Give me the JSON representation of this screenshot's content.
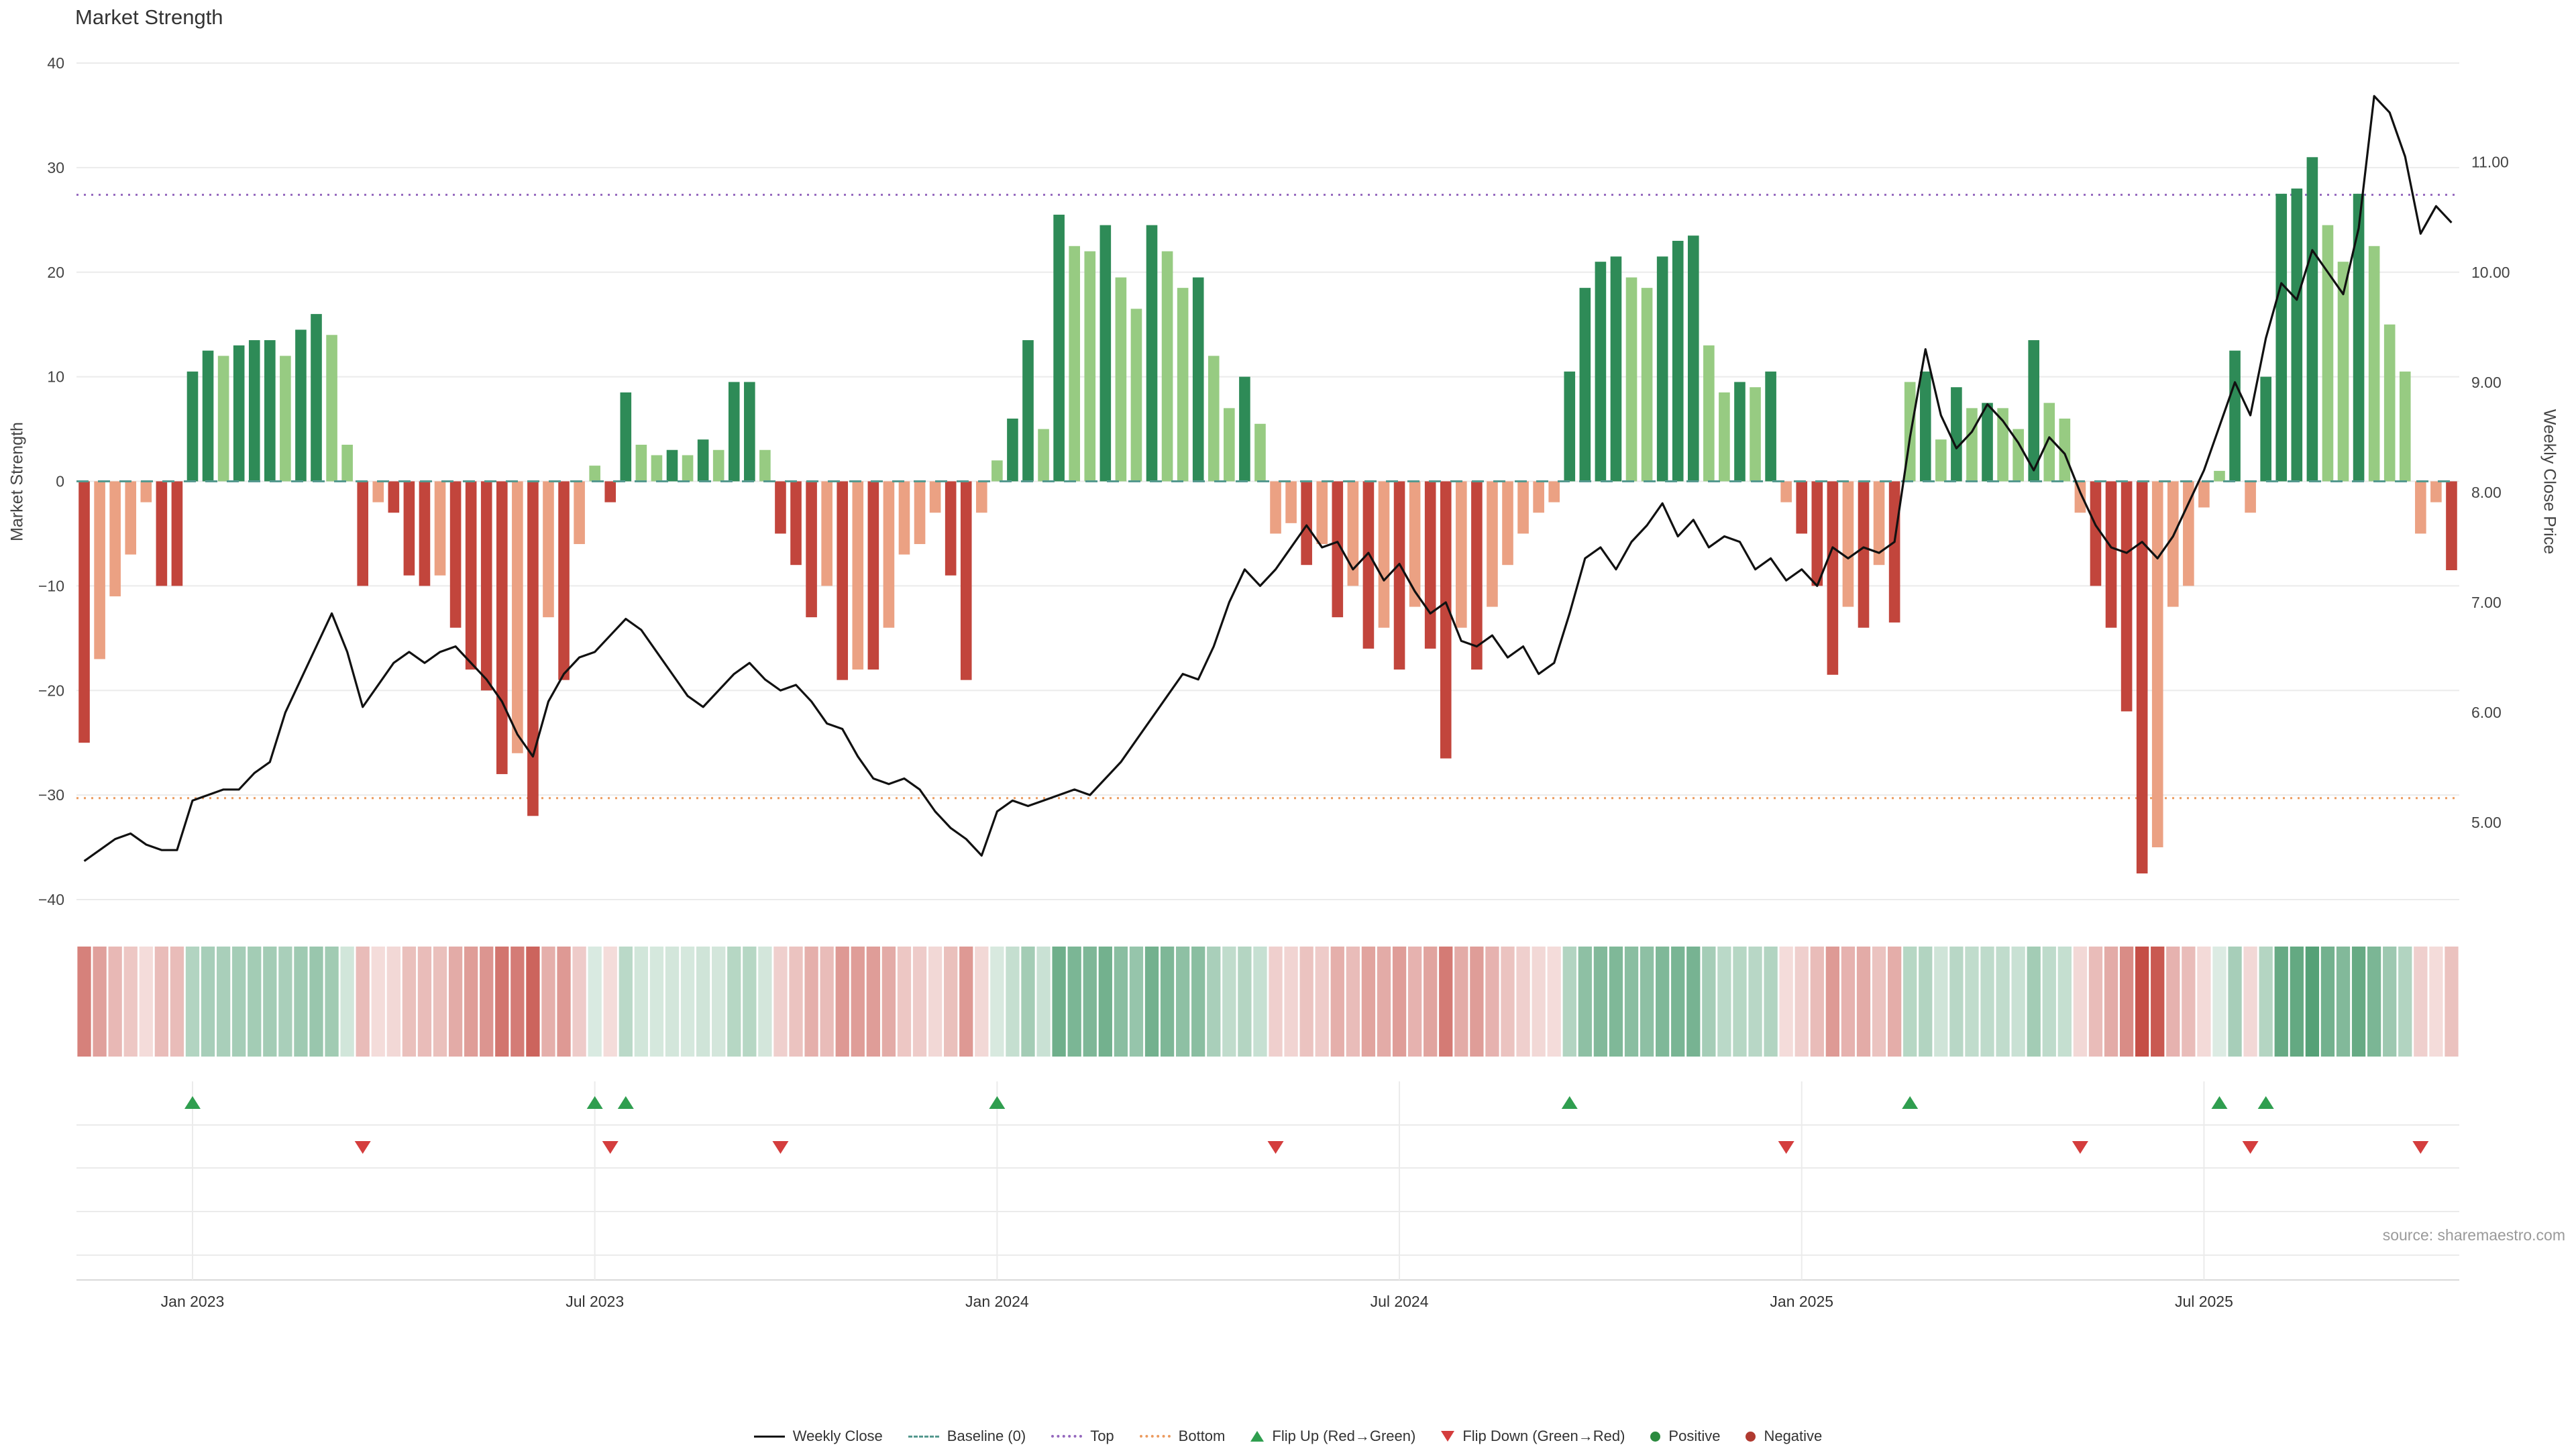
{
  "title": "Market Strength",
  "source_note": "source: sharemaestro.com",
  "axes": {
    "left_label": "Market Strength",
    "right_label": "Weekly Close Price"
  },
  "colors": {
    "bar_pos_strong": "#2e8b57",
    "bar_pos_weak": "#97cb82",
    "bar_neg_strong": "#c2453c",
    "bar_neg_weak": "#eba183",
    "line": "#111111",
    "baseline": "#55998f",
    "top_line": "#9467bd",
    "bottom_line": "#ec9b5f",
    "flip_up": "#2f9e4f",
    "flip_down": "#d43d3d",
    "grid": "#ebebeb",
    "axis_line": "#d9d9d9",
    "tick_text": "#444444",
    "x_label_text": "#333333"
  },
  "legend": {
    "items": [
      {
        "id": "weekly-close",
        "label": "Weekly Close",
        "swatch": "line",
        "color": "#111111"
      },
      {
        "id": "baseline",
        "label": "Baseline (0)",
        "swatch": "dashed",
        "color": "#55998f"
      },
      {
        "id": "top",
        "label": "Top",
        "swatch": "dotted",
        "color": "#9467bd"
      },
      {
        "id": "bottom",
        "label": "Bottom",
        "swatch": "dotted",
        "color": "#ec9b5f"
      },
      {
        "id": "flip-up",
        "label": "Flip Up (Red→Green)",
        "swatch": "triangle-up",
        "color": "#2f9e4f"
      },
      {
        "id": "flip-down",
        "label": "Flip Down (Green→Red)",
        "swatch": "triangle-down",
        "color": "#d43d3d"
      },
      {
        "id": "positive",
        "label": "Positive",
        "swatch": "dot",
        "color": "#2a8a3e"
      },
      {
        "id": "negative",
        "label": "Negative",
        "swatch": "dot",
        "color": "#b03a30"
      }
    ]
  },
  "chart_data": {
    "type": "combo",
    "title": "Market Strength",
    "ylabel_left": "Market Strength",
    "ylabel_right": "Weekly Close Price",
    "legend_position": "bottom",
    "grid": true,
    "left_axis": {
      "range": [
        -40,
        40
      ],
      "ticks": [
        -40,
        -30,
        -20,
        -10,
        0,
        10,
        20,
        30,
        40
      ]
    },
    "right_axis": {
      "range": [
        4.3,
        11.9
      ],
      "ticks": [
        5,
        6,
        7,
        8,
        9,
        10,
        11
      ]
    },
    "x_ticks": [
      {
        "index": 7,
        "label": "Jan 2023"
      },
      {
        "index": 33,
        "label": "Jul 2023"
      },
      {
        "index": 59,
        "label": "Jan 2024"
      },
      {
        "index": 85,
        "label": "Jul 2024"
      },
      {
        "index": 111,
        "label": "Jan 2025"
      },
      {
        "index": 137,
        "label": "Jul 2025"
      }
    ],
    "baseline": 0,
    "top_level": 27.4,
    "bottom_level": -30.3,
    "flip_up_indices": [
      7,
      33,
      35,
      59,
      96,
      118,
      138,
      141
    ],
    "flip_down_indices": [
      18,
      34,
      45,
      77,
      110,
      129,
      140,
      151
    ],
    "series": [
      {
        "name": "Market Strength",
        "type": "bar",
        "values": [
          -25,
          -17,
          -11,
          -7,
          -2,
          -10,
          -10,
          10.5,
          12.5,
          12,
          13,
          13.5,
          13.5,
          12,
          14.5,
          16,
          14,
          3.5,
          -10,
          -2,
          -3,
          -9,
          -10,
          -9,
          -14,
          -18,
          -20,
          -28,
          -26,
          -32,
          -13,
          -19,
          -6,
          1.5,
          -2,
          8.5,
          3.5,
          2.5,
          3,
          2.5,
          4,
          3,
          9.5,
          9.5,
          3,
          -5,
          -8,
          -13,
          -10,
          -19,
          -18,
          -18,
          -14,
          -7,
          -6,
          -3,
          -9,
          -19,
          -3,
          2,
          6,
          13.5,
          5,
          25.5,
          22.5,
          22,
          24.5,
          19.5,
          16.5,
          24.5,
          22,
          18.5,
          19.5,
          12,
          7,
          10,
          5.5,
          -5,
          -4,
          -8,
          -6,
          -13,
          -10,
          -16,
          -14,
          -18,
          -12,
          -16,
          -26.5,
          -14,
          -18,
          -12,
          -8,
          -5,
          -3,
          -2,
          10.5,
          18.5,
          21,
          21.5,
          19.5,
          18.5,
          21.5,
          23,
          23.5,
          13,
          8.5,
          9.5,
          9,
          10.5,
          -2,
          -5,
          -10,
          -18.5,
          -12,
          -14,
          -8,
          -13.5,
          9.5,
          10.5,
          4,
          9,
          7,
          7.5,
          7,
          5,
          13.5,
          7.5,
          6,
          -3,
          -10,
          -14,
          -22,
          -37.5,
          -35,
          -12,
          -10,
          -2.5,
          1,
          12.5,
          -3,
          10,
          27.5,
          28,
          31,
          24.5,
          21,
          27.5,
          22.5,
          15,
          10.5,
          -5,
          -2,
          -8.5
        ]
      },
      {
        "name": "Weekly Close",
        "type": "line",
        "values": [
          4.65,
          4.75,
          4.85,
          4.9,
          4.8,
          4.75,
          4.75,
          5.2,
          5.25,
          5.3,
          5.3,
          5.45,
          5.55,
          6.0,
          6.3,
          6.6,
          6.9,
          6.55,
          6.05,
          6.25,
          6.45,
          6.55,
          6.45,
          6.55,
          6.6,
          6.45,
          6.3,
          6.1,
          5.8,
          5.6,
          6.1,
          6.35,
          6.5,
          6.55,
          6.7,
          6.85,
          6.75,
          6.55,
          6.35,
          6.15,
          6.05,
          6.2,
          6.35,
          6.45,
          6.3,
          6.2,
          6.25,
          6.1,
          5.9,
          5.85,
          5.6,
          5.4,
          5.35,
          5.4,
          5.3,
          5.1,
          4.95,
          4.85,
          4.7,
          5.1,
          5.2,
          5.15,
          5.2,
          5.25,
          5.3,
          5.25,
          5.4,
          5.55,
          5.75,
          5.95,
          6.15,
          6.35,
          6.3,
          6.6,
          7.0,
          7.3,
          7.15,
          7.3,
          7.5,
          7.7,
          7.5,
          7.55,
          7.3,
          7.45,
          7.2,
          7.35,
          7.1,
          6.9,
          7.0,
          6.65,
          6.6,
          6.7,
          6.5,
          6.6,
          6.35,
          6.45,
          6.9,
          7.4,
          7.5,
          7.3,
          7.55,
          7.7,
          7.9,
          7.6,
          7.75,
          7.5,
          7.6,
          7.55,
          7.3,
          7.4,
          7.2,
          7.3,
          7.15,
          7.5,
          7.4,
          7.5,
          7.45,
          7.55,
          8.5,
          9.3,
          8.7,
          8.4,
          8.55,
          8.8,
          8.65,
          8.45,
          8.2,
          8.5,
          8.35,
          8.0,
          7.7,
          7.5,
          7.45,
          7.55,
          7.4,
          7.6,
          7.9,
          8.2,
          8.6,
          9.0,
          8.7,
          9.4,
          9.9,
          9.75,
          10.2,
          10.0,
          9.8,
          10.4,
          11.6,
          11.45,
          11.05,
          10.35,
          10.6,
          10.45
        ]
      }
    ]
  }
}
